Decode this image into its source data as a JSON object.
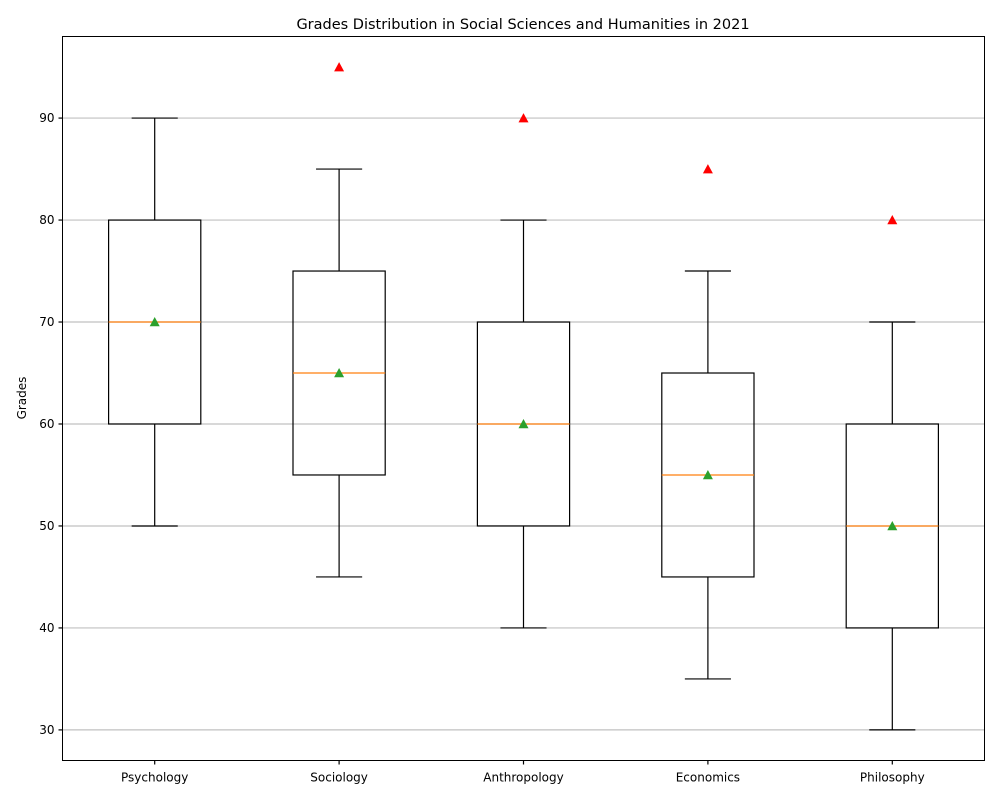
{
  "chart_data": {
    "type": "box",
    "title": "Grades Distribution in Social Sciences and Humanities in 2021",
    "xlabel": "",
    "ylabel": "Grades",
    "ylim": [
      27,
      98
    ],
    "yticks": [
      30,
      40,
      50,
      60,
      70,
      80,
      90
    ],
    "grid": "y",
    "categories": [
      "Psychology",
      "Sociology",
      "Anthropology",
      "Economics",
      "Philosophy"
    ],
    "boxes": [
      {
        "category": "Psychology",
        "whisker_low": 50,
        "q1": 60,
        "median": 70,
        "q3": 80,
        "whisker_high": 90,
        "mean": 70,
        "outliers": []
      },
      {
        "category": "Sociology",
        "whisker_low": 45,
        "q1": 55,
        "median": 65,
        "q3": 75,
        "whisker_high": 85,
        "mean": 65,
        "outliers": [
          95
        ]
      },
      {
        "category": "Anthropology",
        "whisker_low": 40,
        "q1": 50,
        "median": 60,
        "q3": 70,
        "whisker_high": 80,
        "mean": 60,
        "outliers": [
          90
        ]
      },
      {
        "category": "Economics",
        "whisker_low": 35,
        "q1": 45,
        "median": 55,
        "q3": 65,
        "whisker_high": 75,
        "mean": 55,
        "outliers": [
          85
        ]
      },
      {
        "category": "Philosophy",
        "whisker_low": 30,
        "q1": 40,
        "median": 50,
        "q3": 60,
        "whisker_high": 70,
        "mean": 50,
        "outliers": [
          80
        ]
      }
    ],
    "colors": {
      "box": "#000000",
      "median": "#ff7f0e",
      "mean": "#2ca02c",
      "outlier": "#ff0000",
      "grid": "#c0c0c0"
    }
  }
}
